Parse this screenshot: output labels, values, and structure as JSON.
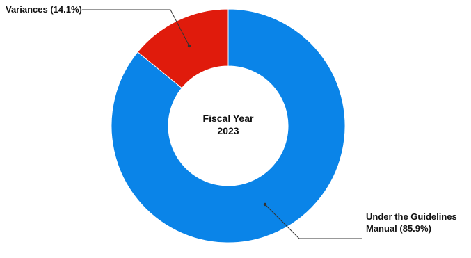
{
  "chart_data": {
    "type": "pie",
    "variant": "donut",
    "center_label": [
      "Fiscal Year",
      "2023"
    ],
    "slices": [
      {
        "name": "Under the Guidelines Manual",
        "value": 85.9,
        "label_lines": [
          "Under the Guidelines",
          "Manual (85.9%)"
        ],
        "color": "#0a84e8"
      },
      {
        "name": "Variances",
        "value": 14.1,
        "label_lines": [
          "Variances (14.1%)"
        ],
        "color": "#e01b0c"
      }
    ],
    "start": "top",
    "direction": "clockwise",
    "legend": "none"
  }
}
